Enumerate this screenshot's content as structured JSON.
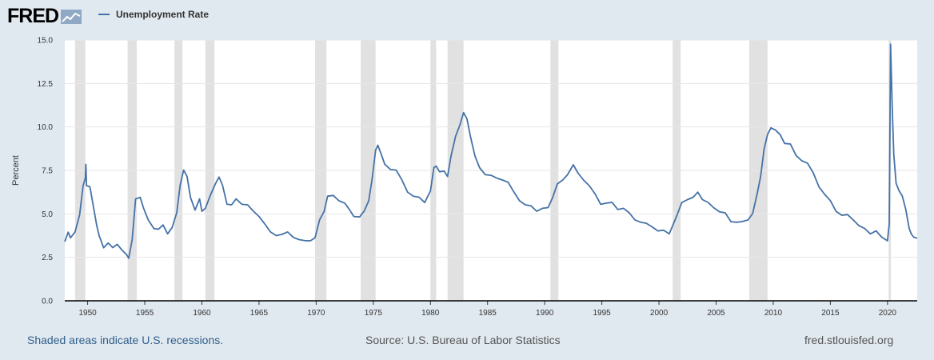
{
  "header": {
    "logo_text": "FRED",
    "logo_icon": "chart-line-icon",
    "legend_label": "Unemployment Rate"
  },
  "footer": {
    "left": "Shaded areas indicate U.S. recessions.",
    "middle": "Source: U.S. Bureau of Labor Statistics",
    "right": "fred.stlouisfed.org"
  },
  "colors": {
    "line": "#4572a7",
    "recession": "#e1e1e1",
    "plot_bg": "#ffffff",
    "page_bg": "#e1e9f0",
    "grid": "#e6e6e6"
  },
  "chart_data": {
    "type": "line",
    "title": "",
    "xlabel": "",
    "ylabel": "Percent",
    "xlim": [
      1948.0,
      2022.6
    ],
    "ylim": [
      0,
      15
    ],
    "grid": true,
    "legend": "top-left",
    "x_ticks": [
      "1950",
      "1955",
      "1960",
      "1965",
      "1970",
      "1975",
      "1980",
      "1985",
      "1990",
      "1995",
      "2000",
      "2005",
      "2010",
      "2015",
      "2020"
    ],
    "y_ticks": [
      "0.0",
      "2.5",
      "5.0",
      "7.5",
      "10.0",
      "12.5",
      "15.0"
    ],
    "recessions": [
      [
        1948.9,
        1949.8
      ],
      [
        1953.5,
        1954.3
      ],
      [
        1957.6,
        1958.3
      ],
      [
        1960.3,
        1961.1
      ],
      [
        1969.9,
        1970.9
      ],
      [
        1973.9,
        1975.2
      ],
      [
        1980.0,
        1980.5
      ],
      [
        1981.5,
        1982.9
      ],
      [
        1990.5,
        1991.2
      ],
      [
        2001.2,
        2001.9
      ],
      [
        2007.9,
        2009.5
      ],
      [
        2020.1,
        2020.3
      ]
    ],
    "series": [
      {
        "name": "Unemployment Rate",
        "points": [
          [
            1948.0,
            3.4
          ],
          [
            1948.3,
            4.0
          ],
          [
            1948.5,
            3.6
          ],
          [
            1948.9,
            3.9
          ],
          [
            1949.3,
            5.0
          ],
          [
            1949.6,
            6.6
          ],
          [
            1949.8,
            7.0
          ],
          [
            1949.85,
            7.9
          ],
          [
            1949.9,
            6.6
          ],
          [
            1950.2,
            6.5
          ],
          [
            1950.5,
            5.5
          ],
          [
            1950.8,
            4.3
          ],
          [
            1951.0,
            3.7
          ],
          [
            1951.4,
            3.1
          ],
          [
            1951.8,
            3.3
          ],
          [
            1952.2,
            3.0
          ],
          [
            1952.6,
            3.3
          ],
          [
            1953.0,
            2.9
          ],
          [
            1953.4,
            2.6
          ],
          [
            1953.6,
            2.5
          ],
          [
            1953.9,
            3.5
          ],
          [
            1954.2,
            5.8
          ],
          [
            1954.6,
            6.0
          ],
          [
            1954.9,
            5.3
          ],
          [
            1955.3,
            4.6
          ],
          [
            1955.8,
            4.2
          ],
          [
            1956.2,
            4.1
          ],
          [
            1956.6,
            4.3
          ],
          [
            1957.0,
            3.9
          ],
          [
            1957.4,
            4.2
          ],
          [
            1957.8,
            5.0
          ],
          [
            1958.1,
            6.7
          ],
          [
            1958.4,
            7.5
          ],
          [
            1958.7,
            7.1
          ],
          [
            1959.0,
            6.0
          ],
          [
            1959.4,
            5.2
          ],
          [
            1959.8,
            5.8
          ],
          [
            1960.0,
            5.2
          ],
          [
            1960.3,
            5.3
          ],
          [
            1960.8,
            6.1
          ],
          [
            1961.2,
            6.8
          ],
          [
            1961.5,
            7.1
          ],
          [
            1961.8,
            6.6
          ],
          [
            1962.2,
            5.6
          ],
          [
            1962.6,
            5.5
          ],
          [
            1963.0,
            5.8
          ],
          [
            1963.5,
            5.6
          ],
          [
            1964.0,
            5.5
          ],
          [
            1964.5,
            5.1
          ],
          [
            1965.0,
            4.9
          ],
          [
            1965.5,
            4.4
          ],
          [
            1966.0,
            3.9
          ],
          [
            1966.5,
            3.8
          ],
          [
            1967.0,
            3.8
          ],
          [
            1967.5,
            3.9
          ],
          [
            1968.0,
            3.7
          ],
          [
            1968.5,
            3.5
          ],
          [
            1969.0,
            3.4
          ],
          [
            1969.5,
            3.5
          ],
          [
            1969.9,
            3.6
          ],
          [
            1970.3,
            4.6
          ],
          [
            1970.7,
            5.2
          ],
          [
            1971.0,
            6.0
          ],
          [
            1971.5,
            6.0
          ],
          [
            1972.0,
            5.8
          ],
          [
            1972.5,
            5.6
          ],
          [
            1972.9,
            5.2
          ],
          [
            1973.3,
            4.9
          ],
          [
            1973.8,
            4.8
          ],
          [
            1974.2,
            5.1
          ],
          [
            1974.6,
            5.8
          ],
          [
            1974.9,
            7.0
          ],
          [
            1975.2,
            8.6
          ],
          [
            1975.4,
            9.0
          ],
          [
            1975.7,
            8.4
          ],
          [
            1976.0,
            7.8
          ],
          [
            1976.5,
            7.6
          ],
          [
            1977.0,
            7.5
          ],
          [
            1977.5,
            6.9
          ],
          [
            1978.0,
            6.3
          ],
          [
            1978.5,
            6.0
          ],
          [
            1979.0,
            5.9
          ],
          [
            1979.5,
            5.7
          ],
          [
            1980.0,
            6.3
          ],
          [
            1980.3,
            7.6
          ],
          [
            1980.5,
            7.8
          ],
          [
            1980.8,
            7.4
          ],
          [
            1981.2,
            7.4
          ],
          [
            1981.5,
            7.2
          ],
          [
            1981.8,
            8.3
          ],
          [
            1982.2,
            9.4
          ],
          [
            1982.6,
            10.2
          ],
          [
            1982.9,
            10.8
          ],
          [
            1983.2,
            10.4
          ],
          [
            1983.5,
            9.5
          ],
          [
            1983.9,
            8.3
          ],
          [
            1984.3,
            7.6
          ],
          [
            1984.8,
            7.3
          ],
          [
            1985.3,
            7.2
          ],
          [
            1985.8,
            7.0
          ],
          [
            1986.3,
            7.0
          ],
          [
            1986.8,
            6.8
          ],
          [
            1987.3,
            6.2
          ],
          [
            1987.8,
            5.8
          ],
          [
            1988.3,
            5.5
          ],
          [
            1988.8,
            5.4
          ],
          [
            1989.3,
            5.2
          ],
          [
            1989.8,
            5.3
          ],
          [
            1990.3,
            5.3
          ],
          [
            1990.7,
            6.0
          ],
          [
            1991.1,
            6.7
          ],
          [
            1991.6,
            6.9
          ],
          [
            1992.0,
            7.3
          ],
          [
            1992.5,
            7.8
          ],
          [
            1992.9,
            7.3
          ],
          [
            1993.4,
            7.0
          ],
          [
            1993.9,
            6.6
          ],
          [
            1994.4,
            6.1
          ],
          [
            1994.9,
            5.6
          ],
          [
            1995.4,
            5.6
          ],
          [
            1995.9,
            5.6
          ],
          [
            1996.4,
            5.3
          ],
          [
            1996.9,
            5.3
          ],
          [
            1997.4,
            5.0
          ],
          [
            1997.9,
            4.7
          ],
          [
            1998.4,
            4.5
          ],
          [
            1998.9,
            4.4
          ],
          [
            1999.4,
            4.3
          ],
          [
            1999.9,
            4.0
          ],
          [
            2000.4,
            4.0
          ],
          [
            2000.9,
            3.9
          ],
          [
            2001.2,
            4.3
          ],
          [
            2001.6,
            4.9
          ],
          [
            2002.0,
            5.7
          ],
          [
            2002.5,
            5.8
          ],
          [
            2003.0,
            5.9
          ],
          [
            2003.4,
            6.3
          ],
          [
            2003.8,
            5.8
          ],
          [
            2004.3,
            5.6
          ],
          [
            2004.8,
            5.4
          ],
          [
            2005.3,
            5.1
          ],
          [
            2005.8,
            5.0
          ],
          [
            2006.3,
            4.6
          ],
          [
            2006.8,
            4.5
          ],
          [
            2007.3,
            4.5
          ],
          [
            2007.8,
            4.7
          ],
          [
            2008.2,
            5.0
          ],
          [
            2008.6,
            6.1
          ],
          [
            2008.9,
            7.2
          ],
          [
            2009.2,
            8.7
          ],
          [
            2009.5,
            9.5
          ],
          [
            2009.8,
            10.0
          ],
          [
            2010.2,
            9.8
          ],
          [
            2010.6,
            9.5
          ],
          [
            2011.0,
            9.1
          ],
          [
            2011.5,
            9.0
          ],
          [
            2012.0,
            8.3
          ],
          [
            2012.5,
            8.1
          ],
          [
            2013.0,
            7.9
          ],
          [
            2013.5,
            7.3
          ],
          [
            2014.0,
            6.6
          ],
          [
            2014.5,
            6.1
          ],
          [
            2015.0,
            5.7
          ],
          [
            2015.5,
            5.2
          ],
          [
            2016.0,
            4.9
          ],
          [
            2016.5,
            4.9
          ],
          [
            2017.0,
            4.7
          ],
          [
            2017.5,
            4.3
          ],
          [
            2018.0,
            4.1
          ],
          [
            2018.5,
            3.9
          ],
          [
            2019.0,
            4.0
          ],
          [
            2019.5,
            3.6
          ],
          [
            2020.0,
            3.5
          ],
          [
            2020.15,
            4.4
          ],
          [
            2020.27,
            14.7
          ],
          [
            2020.42,
            11.1
          ],
          [
            2020.55,
            8.4
          ],
          [
            2020.75,
            6.7
          ],
          [
            2021.0,
            6.4
          ],
          [
            2021.3,
            6.0
          ],
          [
            2021.6,
            5.2
          ],
          [
            2021.9,
            4.2
          ],
          [
            2022.1,
            3.8
          ],
          [
            2022.3,
            3.6
          ],
          [
            2022.6,
            3.6
          ]
        ]
      }
    ]
  }
}
